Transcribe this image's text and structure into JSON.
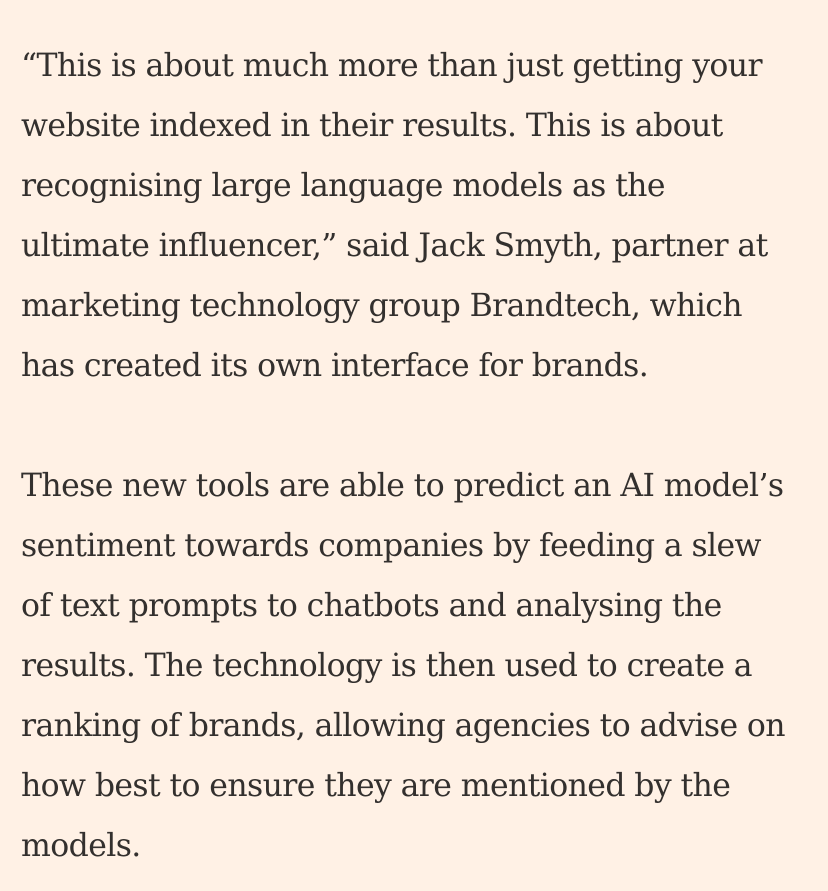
{
  "article": {
    "paragraphs": [
      {
        "lines": [
          "“This is about much more than just getting your",
          "website indexed in their results. This is about",
          "recognising large language models as the",
          "ultimate influencer,” said Jack Smyth, partner at",
          "marketing technology group Brandtech, which",
          "has created its own interface for brands."
        ]
      },
      {
        "lines": [
          "These new tools are able to predict an AI model’s",
          "sentiment towards companies by feeding a slew",
          "of text prompts to chatbots and analysing the",
          "results. The technology is then used to create a",
          "ranking of brands, allowing agencies to advise on",
          "how best to ensure they are mentioned by the",
          "models."
        ]
      }
    ]
  },
  "colors": {
    "background": "#fff1e5",
    "text": "#33302e"
  }
}
